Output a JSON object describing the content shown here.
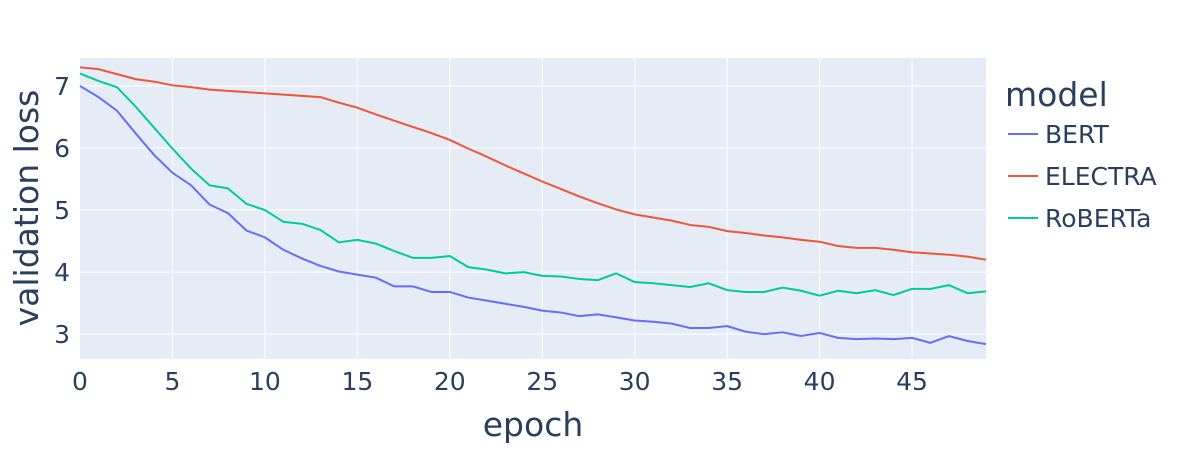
{
  "chart_data": {
    "type": "line",
    "title": "",
    "xlabel": "epoch",
    "ylabel": "validation loss",
    "xlim": [
      0,
      49
    ],
    "ylim": [
      2.6,
      7.45
    ],
    "xticks": [
      0,
      5,
      10,
      15,
      20,
      25,
      30,
      35,
      40,
      45
    ],
    "yticks": [
      3,
      4,
      5,
      6,
      7
    ],
    "grid": true,
    "legend_title": "model",
    "legend_position": "right",
    "x": [
      0,
      1,
      2,
      3,
      4,
      5,
      6,
      7,
      8,
      9,
      10,
      11,
      12,
      13,
      14,
      15,
      16,
      17,
      18,
      19,
      20,
      21,
      22,
      23,
      24,
      25,
      26,
      27,
      28,
      29,
      30,
      31,
      32,
      33,
      34,
      35,
      36,
      37,
      38,
      39,
      40,
      41,
      42,
      43,
      44,
      45,
      46,
      47,
      48,
      49
    ],
    "series": [
      {
        "name": "BERT",
        "color": "#636efa",
        "values": [
          7.0,
          6.82,
          6.6,
          6.24,
          5.89,
          5.6,
          5.4,
          5.09,
          4.95,
          4.67,
          4.56,
          4.36,
          4.22,
          4.1,
          4.01,
          3.96,
          3.91,
          3.77,
          3.77,
          3.68,
          3.68,
          3.59,
          3.54,
          3.49,
          3.44,
          3.38,
          3.35,
          3.29,
          3.32,
          3.27,
          3.22,
          3.2,
          3.17,
          3.1,
          3.1,
          3.13,
          3.04,
          3.0,
          3.03,
          2.97,
          3.02,
          2.94,
          2.92,
          2.93,
          2.92,
          2.94,
          2.86,
          2.97,
          2.89,
          2.84
        ]
      },
      {
        "name": "ELECTRA",
        "color": "#ef553b",
        "values": [
          7.3,
          7.27,
          7.19,
          7.11,
          7.07,
          7.01,
          6.98,
          6.94,
          6.92,
          6.9,
          6.88,
          6.86,
          6.84,
          6.82,
          6.73,
          6.65,
          6.54,
          6.44,
          6.34,
          6.24,
          6.13,
          5.99,
          5.86,
          5.72,
          5.59,
          5.46,
          5.34,
          5.22,
          5.11,
          5.01,
          4.93,
          4.88,
          4.83,
          4.76,
          4.73,
          4.66,
          4.63,
          4.59,
          4.56,
          4.52,
          4.49,
          4.42,
          4.39,
          4.39,
          4.36,
          4.32,
          4.3,
          4.28,
          4.25,
          4.2
        ]
      },
      {
        "name": "RoBERTa",
        "color": "#00cc96",
        "values": [
          7.2,
          7.08,
          6.98,
          6.67,
          6.33,
          5.99,
          5.67,
          5.4,
          5.35,
          5.1,
          5.0,
          4.81,
          4.78,
          4.68,
          4.48,
          4.52,
          4.46,
          4.34,
          4.23,
          4.23,
          4.26,
          4.08,
          4.04,
          3.98,
          4.0,
          3.94,
          3.93,
          3.89,
          3.87,
          3.98,
          3.84,
          3.82,
          3.79,
          3.76,
          3.82,
          3.71,
          3.68,
          3.68,
          3.75,
          3.7,
          3.62,
          3.7,
          3.66,
          3.71,
          3.63,
          3.73,
          3.73,
          3.79,
          3.66,
          3.69
        ]
      }
    ]
  }
}
